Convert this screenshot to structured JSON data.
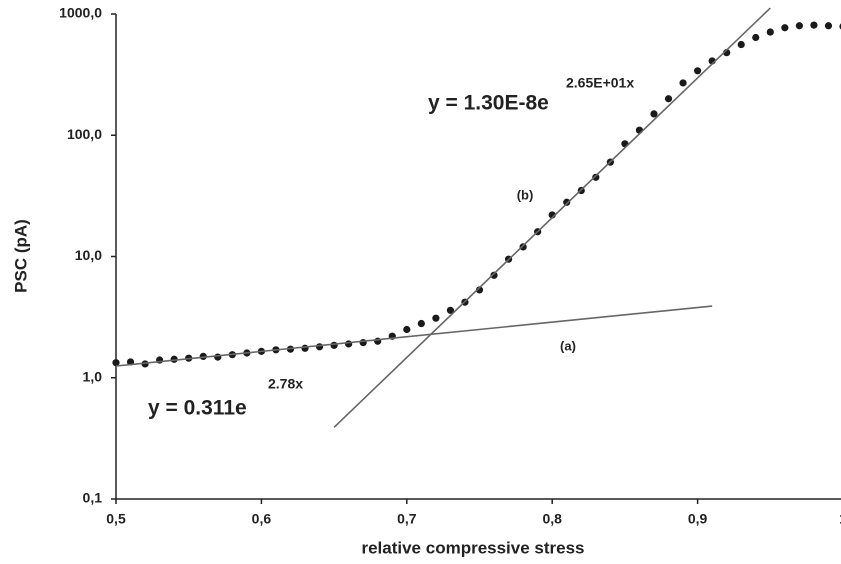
{
  "chart_data": {
    "type": "scatter",
    "x_label": "relative compressive stress",
    "y_label": "PSC  (pA)",
    "log_y": true,
    "color": "#1a1a1a",
    "x": [
      0.5,
      0.51,
      0.52,
      0.53,
      0.54,
      0.55,
      0.56,
      0.57,
      0.58,
      0.59,
      0.6,
      0.61,
      0.62,
      0.63,
      0.64,
      0.65,
      0.66,
      0.67,
      0.68,
      0.69,
      0.7,
      0.71,
      0.72,
      0.73,
      0.74,
      0.75,
      0.76,
      0.77,
      0.78,
      0.79,
      0.8,
      0.81,
      0.82,
      0.83,
      0.84,
      0.85,
      0.86,
      0.87,
      0.88,
      0.89,
      0.9,
      0.91,
      0.92,
      0.93,
      0.94,
      0.95,
      0.96,
      0.97,
      0.98,
      0.99,
      1.0
    ],
    "values": [
      1.33,
      1.35,
      1.3,
      1.4,
      1.42,
      1.45,
      1.5,
      1.48,
      1.55,
      1.6,
      1.65,
      1.7,
      1.72,
      1.75,
      1.8,
      1.85,
      1.9,
      1.95,
      2.0,
      2.2,
      2.5,
      2.8,
      3.1,
      3.6,
      4.2,
      5.3,
      7.0,
      9.5,
      12,
      16,
      22,
      28,
      35,
      45,
      60,
      85,
      110,
      150,
      200,
      270,
      340,
      410,
      480,
      560,
      640,
      710,
      770,
      800,
      810,
      800,
      790
    ],
    "xlim": [
      0.5,
      1.0
    ],
    "xticks": [
      {
        "value": 0.5,
        "label": "0,5"
      },
      {
        "value": 0.6,
        "label": "0,6"
      },
      {
        "value": 0.7,
        "label": "0,7"
      },
      {
        "value": 0.8,
        "label": "0,8"
      },
      {
        "value": 0.9,
        "label": "0,9"
      },
      1
    ],
    "ylim": [
      0.1,
      1000
    ],
    "yticks": [
      {
        "value": 0.1,
        "label": "0,1"
      },
      {
        "value": 1,
        "label": "1,0"
      },
      {
        "value": 10,
        "label": "10,0"
      },
      {
        "value": 100,
        "label": "100,0"
      },
      {
        "value": 1000,
        "label": "1000,0"
      }
    ],
    "trendlines": [
      {
        "x": [
          0.5,
          0.91
        ],
        "y": [
          1.25,
          3.9
        ],
        "equation": "y = 0.311e",
        "exponent": "2.78x",
        "label": "(a)",
        "color": "#666666"
      },
      {
        "x": [
          0.65,
          0.95
        ],
        "y": [
          0.39,
          1120
        ],
        "equation": "y = 1.30E-8e",
        "exponent": "2.65E+01x",
        "label": "(b)",
        "color": "#666666"
      }
    ]
  }
}
